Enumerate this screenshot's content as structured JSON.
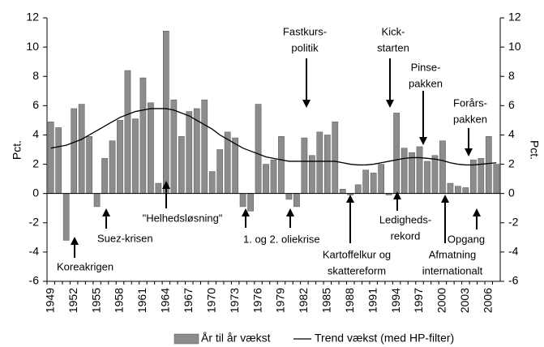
{
  "chart_data": {
    "type": "bar_line",
    "categories": [
      "1949",
      null,
      null,
      "1952",
      null,
      null,
      "1955",
      null,
      null,
      "1958",
      null,
      null,
      "1961",
      null,
      null,
      "1964",
      null,
      null,
      "1967",
      null,
      null,
      "1970",
      null,
      null,
      "1973",
      null,
      null,
      "1976",
      null,
      null,
      "1979",
      null,
      null,
      "1982",
      null,
      null,
      "1985",
      null,
      null,
      "1988",
      null,
      null,
      "1991",
      null,
      null,
      "1994",
      null,
      null,
      "1997",
      null,
      null,
      "2000",
      null,
      null,
      "2003",
      null,
      null,
      "2006",
      null
    ],
    "series": [
      {
        "name": "År til år vækst",
        "color": "#8c8c8c",
        "type": "bar",
        "values": [
          4.9,
          4.5,
          -3.2,
          5.8,
          6.1,
          3.9,
          -0.9,
          2.4,
          3.6,
          5.0,
          8.4,
          5.1,
          7.9,
          6.2,
          0.7,
          11.1,
          6.4,
          3.9,
          5.6,
          5.8,
          6.4,
          1.5,
          3.0,
          4.2,
          3.8,
          -0.9,
          -1.2,
          6.1,
          2.0,
          2.3,
          3.9,
          -0.4,
          -0.9,
          3.8,
          2.6,
          4.2,
          4.0,
          4.9,
          0.3,
          -0.1,
          0.6,
          1.6,
          1.4,
          2.0,
          -0.1,
          5.5,
          3.1,
          2.8,
          3.2,
          2.2,
          2.6,
          3.6,
          0.7,
          0.5,
          0.4,
          2.3,
          2.4,
          3.9,
          2.0
        ]
      },
      {
        "name": "Trend vækst (med HP-filter)",
        "color": "#000000",
        "type": "line",
        "values": [
          3.1,
          3.2,
          3.3,
          3.5,
          3.7,
          4.0,
          4.3,
          4.6,
          4.9,
          5.2,
          5.4,
          5.6,
          5.7,
          5.8,
          5.8,
          5.8,
          5.7,
          5.5,
          5.3,
          5.0,
          4.7,
          4.4,
          4.0,
          3.7,
          3.4,
          3.1,
          2.9,
          2.7,
          2.5,
          2.4,
          2.3,
          2.2,
          2.2,
          2.2,
          2.2,
          2.2,
          2.2,
          2.2,
          2.1,
          2.0,
          1.95,
          1.95,
          2.0,
          2.1,
          2.2,
          2.3,
          2.4,
          2.45,
          2.45,
          2.4,
          2.35,
          2.25,
          2.1,
          2.0,
          1.95,
          1.95,
          2.0,
          2.05,
          2.1
        ]
      }
    ],
    "ylim": [
      -6,
      12
    ],
    "yticks": [
      -6,
      -4,
      -2,
      0,
      2,
      4,
      6,
      8,
      10,
      12
    ],
    "y2lim": [
      -6,
      12
    ],
    "y2ticks": [
      -6,
      -4,
      -2,
      0,
      2,
      4,
      6,
      8,
      10,
      12
    ],
    "ylabel": "Pct.",
    "y2label": "Pct.",
    "annotations": [
      [
        "Koreakrigen"
      ],
      [
        "Suez-krisen"
      ],
      [
        "\"Helhedsløsning\""
      ],
      [
        "1. og 2. oliekrise"
      ],
      [
        "Fastkurs-",
        "politik"
      ],
      [
        "Kartoffelkur og",
        "skattereform"
      ],
      [
        "Kick-",
        "starten"
      ],
      [
        "Ledigheds-",
        "rekord"
      ],
      [
        "Pinse-",
        "pakken"
      ],
      [
        "Afmatning",
        "internationalt"
      ],
      [
        "Opgang"
      ],
      [
        "Forårs-",
        "pakken"
      ]
    ],
    "legend": "bottom"
  }
}
